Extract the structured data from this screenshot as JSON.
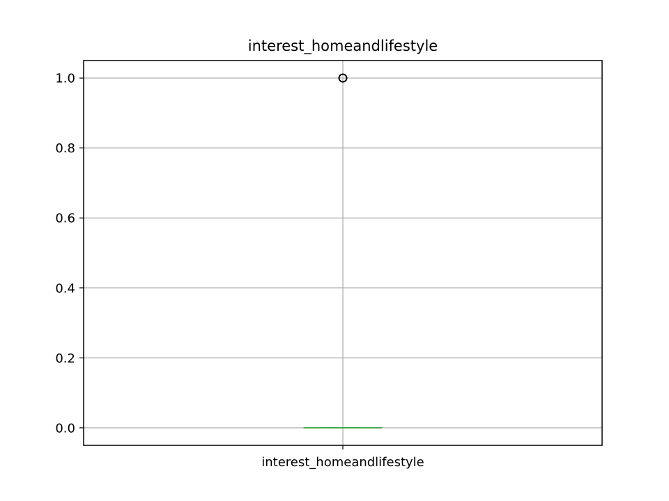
{
  "chart_data": {
    "type": "box",
    "title": "interest_homeandlifestyle",
    "xlabel": "",
    "ylabel": "",
    "categories": [
      "interest_homeandlifestyle"
    ],
    "boxes": [
      {
        "category": "interest_homeandlifestyle",
        "whisker_low": 0.0,
        "q1": 0.0,
        "median": 0.0,
        "q3": 0.0,
        "whisker_high": 0.0,
        "outliers": [
          1.0
        ]
      }
    ],
    "ylim": [
      -0.05,
      1.05
    ],
    "y_ticks": [
      0.0,
      0.2,
      0.4,
      0.6,
      0.8,
      1.0
    ],
    "y_tick_labels": [
      "0.0",
      "0.2",
      "0.4",
      "0.6",
      "0.8",
      "1.0"
    ],
    "grid": true,
    "colors": {
      "median": "#2ca02c",
      "box": "#1f77b4",
      "outlier_edge": "#000000",
      "grid": "#b0b0b0",
      "axes": "#000000"
    }
  }
}
